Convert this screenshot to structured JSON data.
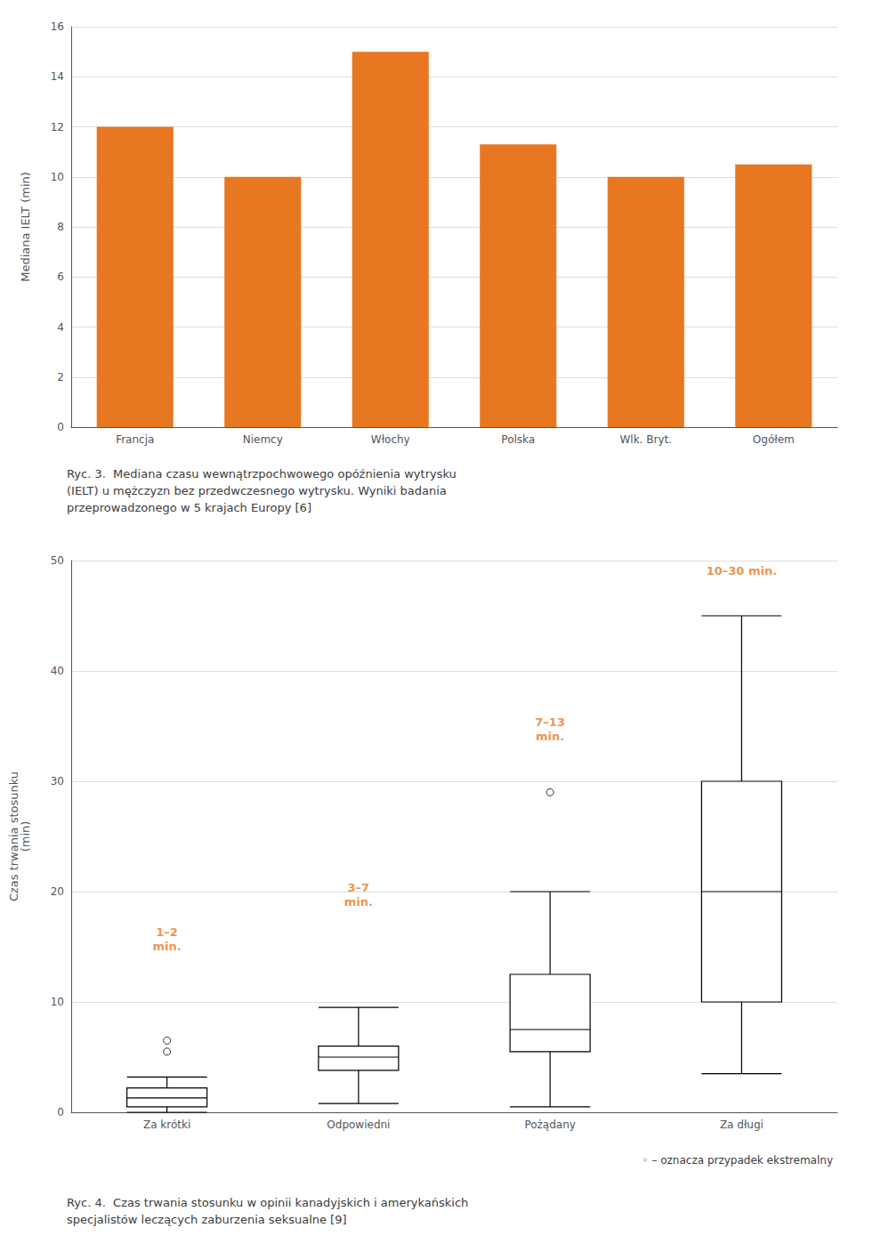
{
  "chart_data": [
    {
      "type": "bar",
      "title": "Ryc. 3.  Mediana czasu wewnątrzpochwowego opóźnienia wytrysku\n(IELT) u mężczyzn bez przedwczesnego wytrysku. Wyniki badania\nprzeprowadzonego w 5 krajach Europy [6]",
      "categories": [
        "Francja",
        "Niemcy",
        "Włochy",
        "Polska",
        "Wlk. Bryt.",
        "Ogółem"
      ],
      "values": [
        12.0,
        10.0,
        15.0,
        11.3,
        10.0,
        10.5
      ],
      "color": "#E87722",
      "ylabel": "Mediana IELT (min)",
      "ylim": [
        0,
        16
      ],
      "yticks": [
        0,
        2,
        4,
        6,
        8,
        10,
        12,
        14,
        16
      ],
      "grid": true
    },
    {
      "type": "boxplot",
      "title": "Ryc. 4.  Czas trwania stosunku w opinii kanadyjskich i amerykańskich\nspecjalistów leczących zaburzenia seksualne [9]",
      "subtitle": "◦ – oznacza przypadek ekstremalny",
      "categories": [
        "Za krótki",
        "Odpowiedni",
        "Pożądany",
        "Za długi"
      ],
      "boxes": [
        {
          "low": 0.0,
          "q1": 0.5,
          "median": 1.3,
          "q3": 2.2,
          "high": 3.2,
          "outliers": [
            5.5,
            6.5
          ]
        },
        {
          "low": 0.8,
          "q1": 3.8,
          "median": 5.0,
          "q3": 6.0,
          "high": 9.5,
          "outliers": []
        },
        {
          "low": 0.5,
          "q1": 5.5,
          "median": 7.5,
          "q3": 12.5,
          "high": 20.0,
          "outliers": [
            29.0
          ]
        },
        {
          "low": 3.5,
          "q1": 10.0,
          "median": 20.0,
          "q3": 30.0,
          "high": 45.0,
          "outliers": []
        }
      ],
      "color": "#000000",
      "ylabel": "Czas trwania stosunku\n(min)",
      "ylim": [
        0,
        50
      ],
      "yticks": [
        0,
        10,
        20,
        30,
        40,
        50
      ],
      "grid": true,
      "annotations": [
        {
          "category": "Za krótki",
          "y": 14,
          "text": "1–2\nmin.",
          "color": "#E87722"
        },
        {
          "category": "Odpowiedni",
          "y": 18,
          "text": "3–7\nmin.",
          "color": "#E87722"
        },
        {
          "category": "Pożądany",
          "y": 33,
          "text": "7–13\nmin.",
          "color": "#E87722"
        },
        {
          "category": "Za długi",
          "y": 48,
          "text": "10–30 min.",
          "color": "#E87722"
        }
      ]
    }
  ]
}
